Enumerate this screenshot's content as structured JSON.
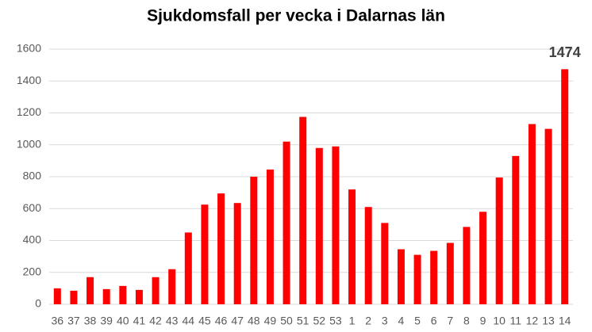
{
  "chart_data": {
    "type": "bar",
    "title": "Sjukdomsfall per vecka i Dalarnas län",
    "categories": [
      "36",
      "37",
      "38",
      "39",
      "40",
      "41",
      "42",
      "43",
      "44",
      "45",
      "46",
      "47",
      "48",
      "49",
      "50",
      "51",
      "52",
      "53",
      "1",
      "2",
      "3",
      "4",
      "5",
      "6",
      "7",
      "8",
      "9",
      "10",
      "11",
      "12",
      "13",
      "14"
    ],
    "values": [
      100,
      85,
      170,
      95,
      115,
      90,
      170,
      220,
      450,
      625,
      695,
      635,
      800,
      845,
      1020,
      1175,
      980,
      990,
      720,
      610,
      510,
      345,
      310,
      335,
      385,
      485,
      580,
      795,
      930,
      1130,
      1100,
      1474
    ],
    "value_labels": [
      null,
      null,
      null,
      null,
      null,
      null,
      null,
      null,
      null,
      null,
      null,
      null,
      null,
      null,
      null,
      null,
      null,
      null,
      null,
      null,
      null,
      null,
      null,
      null,
      null,
      null,
      null,
      null,
      null,
      null,
      null,
      "1474"
    ],
    "color": "#ff0000",
    "ylim": [
      0,
      1600
    ],
    "yticks": [
      0,
      200,
      400,
      600,
      800,
      1000,
      1200,
      1400,
      1600
    ],
    "grid": true
  }
}
